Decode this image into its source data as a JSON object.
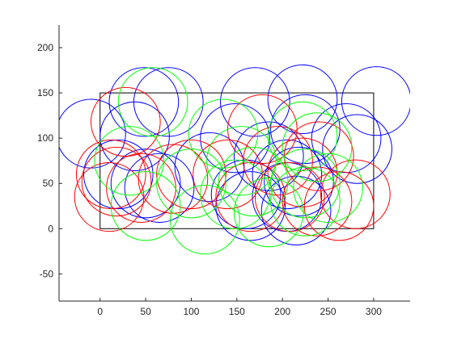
{
  "chart_data": {
    "type": "scatter",
    "title": "",
    "xlabel": "",
    "ylabel": "",
    "xlim": [
      -45,
      340
    ],
    "ylim": [
      -80,
      225
    ],
    "x_ticks": [
      0,
      50,
      100,
      150,
      200,
      250,
      300
    ],
    "y_ticks": [
      -50,
      0,
      50,
      100,
      150,
      200
    ],
    "x_tick_labels": [
      "0",
      "50",
      "100",
      "150",
      "200",
      "250",
      "300"
    ],
    "y_tick_labels": [
      "-50",
      "0",
      "50",
      "100",
      "150",
      "200"
    ],
    "grid": false,
    "legend": "none",
    "colors": {
      "blue": "#0000ff",
      "red": "#ff0000",
      "green": "#00ff00",
      "rectangle": "#000000",
      "axes": "#262626"
    },
    "rectangle": {
      "x": [
        0,
        300
      ],
      "y": [
        0,
        150
      ]
    },
    "circle_radius": 38,
    "series": [
      {
        "color": "blue",
        "circles": [
          [
            -10,
            105
          ],
          [
            48,
            140
          ],
          [
            75,
            140
          ],
          [
            20,
            60
          ],
          [
            38,
            102
          ],
          [
            50,
            50
          ],
          [
            65,
            45
          ],
          [
            120,
            68
          ],
          [
            148,
            100
          ],
          [
            170,
            140
          ],
          [
            185,
            80
          ],
          [
            205,
            60
          ],
          [
            222,
            143
          ],
          [
            225,
            110
          ],
          [
            205,
            35
          ],
          [
            218,
            52
          ],
          [
            270,
            100
          ],
          [
            282,
            88
          ],
          [
            303,
            141
          ],
          [
            165,
            25
          ],
          [
            215,
            20
          ],
          [
            160,
            38
          ]
        ]
      },
      {
        "color": "red",
        "circles": [
          [
            12,
            60
          ],
          [
            18,
            52
          ],
          [
            28,
            118
          ],
          [
            10,
            35
          ],
          [
            45,
            45
          ],
          [
            80,
            55
          ],
          [
            100,
            60
          ],
          [
            140,
            60
          ],
          [
            165,
            35
          ],
          [
            178,
            110
          ],
          [
            195,
            75
          ],
          [
            222,
            62
          ],
          [
            240,
            80
          ],
          [
            208,
            35
          ],
          [
            238,
            30
          ],
          [
            262,
            25
          ],
          [
            280,
            38
          ]
        ]
      },
      {
        "color": "green",
        "circles": [
          [
            58,
            140
          ],
          [
            32,
            75
          ],
          [
            50,
            25
          ],
          [
            100,
            50
          ],
          [
            115,
            10
          ],
          [
            135,
            105
          ],
          [
            155,
            75
          ],
          [
            148,
            38
          ],
          [
            185,
            18
          ],
          [
            222,
            102
          ],
          [
            238,
            90
          ],
          [
            225,
            50
          ],
          [
            250,
            45
          ],
          [
            225,
            30
          ],
          [
            168,
            52
          ]
        ]
      }
    ]
  }
}
